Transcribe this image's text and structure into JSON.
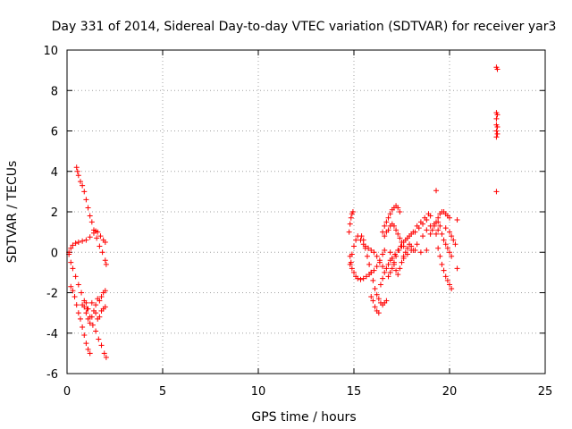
{
  "chart_data": {
    "type": "scatter",
    "title": "Day 331 of 2014, Sidereal Day-to-day VTEC variation (SDTVAR) for receiver yar3",
    "xlabel": "GPS time / hours",
    "ylabel": "SDTVAR / TECUs",
    "xlim": [
      0,
      25
    ],
    "ylim": [
      -6,
      10
    ],
    "xticks": [
      "0",
      "5",
      "10",
      "15",
      "20",
      "25"
    ],
    "yticks": [
      "-6",
      "-4",
      "-2",
      "0",
      "2",
      "4",
      "6",
      "8",
      "10"
    ],
    "grid": true,
    "marker": "+",
    "color": "#ff0000",
    "series": [
      {
        "points": [
          [
            0.5,
            4.2
          ],
          [
            0.55,
            4.0
          ],
          [
            0.6,
            3.8
          ],
          [
            0.7,
            3.5
          ],
          [
            0.8,
            3.3
          ],
          [
            0.9,
            3.0
          ],
          [
            1.0,
            2.6
          ],
          [
            1.1,
            2.2
          ],
          [
            1.2,
            1.8
          ],
          [
            1.3,
            1.5
          ],
          [
            1.4,
            1.1
          ],
          [
            1.55,
            0.7
          ],
          [
            1.7,
            0.3
          ],
          [
            1.85,
            0.0
          ],
          [
            2.0,
            -0.4
          ],
          [
            2.05,
            -0.6
          ],
          [
            0.1,
            0.0
          ],
          [
            0.2,
            0.2
          ],
          [
            0.3,
            0.35
          ],
          [
            0.45,
            0.45
          ],
          [
            0.6,
            0.5
          ],
          [
            0.8,
            0.55
          ],
          [
            1.0,
            0.6
          ],
          [
            1.2,
            0.75
          ],
          [
            1.4,
            0.95
          ],
          [
            1.5,
            1.05
          ],
          [
            1.6,
            1.0
          ],
          [
            1.75,
            0.8
          ],
          [
            1.9,
            0.6
          ],
          [
            2.0,
            0.5
          ],
          [
            0.1,
            -0.1
          ],
          [
            0.2,
            -0.5
          ],
          [
            0.3,
            -0.8
          ],
          [
            0.45,
            -1.2
          ],
          [
            0.6,
            -1.6
          ],
          [
            0.75,
            -2.0
          ],
          [
            0.9,
            -2.4
          ],
          [
            1.05,
            -2.8
          ],
          [
            1.2,
            -3.2
          ],
          [
            1.35,
            -3.6
          ],
          [
            1.5,
            -3.9
          ],
          [
            1.65,
            -4.3
          ],
          [
            1.8,
            -4.6
          ],
          [
            1.95,
            -5.0
          ],
          [
            2.05,
            -5.2
          ],
          [
            0.2,
            -1.7
          ],
          [
            0.3,
            -1.9
          ],
          [
            0.4,
            -2.2
          ],
          [
            0.5,
            -2.6
          ],
          [
            0.6,
            -3.0
          ],
          [
            0.7,
            -3.3
          ],
          [
            0.8,
            -3.7
          ],
          [
            0.9,
            -4.1
          ],
          [
            1.0,
            -4.5
          ],
          [
            1.1,
            -4.8
          ],
          [
            1.2,
            -5.0
          ],
          [
            0.8,
            -2.6
          ],
          [
            0.9,
            -2.7
          ],
          [
            1.0,
            -3.0
          ],
          [
            1.1,
            -3.3
          ],
          [
            1.2,
            -3.5
          ],
          [
            1.3,
            -3.2
          ],
          [
            1.4,
            -2.9
          ],
          [
            1.5,
            -3.0
          ],
          [
            1.6,
            -3.3
          ],
          [
            1.7,
            -3.2
          ],
          [
            1.8,
            -2.9
          ],
          [
            1.9,
            -2.8
          ],
          [
            2.0,
            -2.7
          ],
          [
            1.0,
            -2.5
          ],
          [
            1.1,
            -2.8
          ],
          [
            1.3,
            -2.5
          ],
          [
            1.5,
            -2.6
          ],
          [
            1.6,
            -2.3
          ],
          [
            1.7,
            -2.4
          ],
          [
            1.8,
            -2.2
          ],
          [
            1.9,
            -2.0
          ],
          [
            2.0,
            -1.9
          ]
        ]
      },
      {
        "points": [
          [
            14.75,
            1.0
          ],
          [
            14.8,
            1.4
          ],
          [
            14.85,
            1.7
          ],
          [
            14.9,
            1.9
          ],
          [
            14.95,
            2.0
          ],
          [
            14.8,
            -0.6
          ],
          [
            14.9,
            -0.1
          ],
          [
            15.0,
            0.3
          ],
          [
            15.1,
            0.6
          ],
          [
            15.2,
            0.8
          ],
          [
            15.35,
            0.6
          ],
          [
            15.5,
            0.4
          ],
          [
            15.6,
            0.3
          ],
          [
            15.75,
            0.2
          ],
          [
            15.9,
            0.1
          ],
          [
            16.05,
            0.0
          ],
          [
            16.2,
            -0.2
          ],
          [
            16.35,
            -0.5
          ],
          [
            16.5,
            -0.7
          ],
          [
            14.8,
            -0.2
          ],
          [
            14.85,
            -0.5
          ],
          [
            14.9,
            -0.8
          ],
          [
            15.0,
            -1.0
          ],
          [
            15.1,
            -1.2
          ],
          [
            15.2,
            -1.3
          ],
          [
            15.35,
            -1.35
          ],
          [
            15.5,
            -1.3
          ],
          [
            15.65,
            -1.2
          ],
          [
            15.8,
            -1.1
          ],
          [
            15.9,
            -1.0
          ],
          [
            16.05,
            -0.9
          ],
          [
            16.2,
            -0.7
          ],
          [
            16.35,
            -0.4
          ],
          [
            16.5,
            -0.1
          ],
          [
            16.6,
            0.1
          ],
          [
            15.4,
            0.8
          ],
          [
            15.5,
            0.6
          ],
          [
            15.6,
            0.2
          ],
          [
            15.7,
            -0.2
          ],
          [
            15.8,
            -0.6
          ],
          [
            15.9,
            -1.0
          ],
          [
            16.0,
            -1.4
          ],
          [
            16.1,
            -1.8
          ],
          [
            16.2,
            -2.1
          ],
          [
            16.3,
            -2.3
          ],
          [
            16.4,
            -2.5
          ],
          [
            16.5,
            -2.6
          ],
          [
            16.6,
            -2.5
          ],
          [
            16.7,
            -2.4
          ],
          [
            15.9,
            -2.2
          ],
          [
            16.0,
            -2.4
          ],
          [
            16.1,
            -2.7
          ],
          [
            16.2,
            -2.9
          ],
          [
            16.3,
            -3.0
          ],
          [
            16.5,
            1.0
          ],
          [
            16.6,
            1.3
          ],
          [
            16.7,
            1.5
          ],
          [
            16.8,
            1.7
          ],
          [
            16.9,
            1.9
          ],
          [
            17.0,
            2.1
          ],
          [
            17.1,
            2.2
          ],
          [
            17.2,
            2.3
          ],
          [
            17.3,
            2.2
          ],
          [
            17.4,
            2.0
          ],
          [
            16.6,
            0.8
          ],
          [
            16.7,
            1.0
          ],
          [
            16.8,
            1.1
          ],
          [
            16.9,
            1.3
          ],
          [
            17.0,
            1.4
          ],
          [
            17.1,
            1.3
          ],
          [
            17.2,
            1.1
          ],
          [
            17.3,
            0.9
          ],
          [
            17.4,
            0.7
          ],
          [
            17.5,
            0.5
          ],
          [
            17.6,
            0.3
          ],
          [
            16.4,
            -1.6
          ],
          [
            16.5,
            -1.3
          ],
          [
            16.6,
            -1.0
          ],
          [
            16.7,
            -0.8
          ],
          [
            16.8,
            -0.6
          ],
          [
            16.9,
            -0.4
          ],
          [
            17.0,
            -0.3
          ],
          [
            17.15,
            -0.1
          ],
          [
            17.3,
            0.1
          ],
          [
            17.45,
            0.3
          ],
          [
            17.6,
            0.5
          ],
          [
            17.8,
            0.7
          ],
          [
            18.0,
            0.9
          ],
          [
            18.2,
            1.0
          ],
          [
            18.4,
            1.2
          ],
          [
            18.6,
            1.4
          ],
          [
            18.8,
            1.6
          ],
          [
            19.0,
            1.8
          ],
          [
            16.8,
            -1.2
          ],
          [
            16.9,
            -1.0
          ],
          [
            17.0,
            -0.8
          ],
          [
            17.1,
            -0.5
          ],
          [
            17.2,
            -0.2
          ],
          [
            17.35,
            0.1
          ],
          [
            17.5,
            0.3
          ],
          [
            17.7,
            0.6
          ],
          [
            17.9,
            0.8
          ],
          [
            18.1,
            1.0
          ],
          [
            18.3,
            1.3
          ],
          [
            18.5,
            1.5
          ],
          [
            18.7,
            1.7
          ],
          [
            18.9,
            1.9
          ],
          [
            16.9,
            0.0
          ],
          [
            17.0,
            -0.3
          ],
          [
            17.1,
            -0.6
          ],
          [
            17.2,
            -0.9
          ],
          [
            17.3,
            -1.1
          ],
          [
            17.4,
            -0.8
          ],
          [
            17.5,
            -0.5
          ],
          [
            17.6,
            -0.2
          ],
          [
            17.7,
            0.0
          ],
          [
            17.8,
            0.2
          ],
          [
            17.9,
            0.4
          ],
          [
            18.0,
            0.3
          ],
          [
            18.1,
            0.1
          ],
          [
            17.6,
            -0.3
          ],
          [
            17.8,
            -0.1
          ],
          [
            18.0,
            0.1
          ],
          [
            18.3,
            0.4
          ],
          [
            18.6,
            0.8
          ],
          [
            18.8,
            1.1
          ],
          [
            19.0,
            1.3
          ],
          [
            19.2,
            1.4
          ],
          [
            19.4,
            1.5
          ],
          [
            19.0,
            0.9
          ],
          [
            19.1,
            1.1
          ],
          [
            19.2,
            1.3
          ],
          [
            19.3,
            1.5
          ],
          [
            19.4,
            1.7
          ],
          [
            19.5,
            1.9
          ],
          [
            19.6,
            2.0
          ],
          [
            19.7,
            2.0
          ],
          [
            19.8,
            1.9
          ],
          [
            19.9,
            1.8
          ],
          [
            20.0,
            1.7
          ],
          [
            19.4,
            0.2
          ],
          [
            19.5,
            -0.2
          ],
          [
            19.6,
            -0.6
          ],
          [
            19.7,
            -0.9
          ],
          [
            19.8,
            -1.2
          ],
          [
            19.9,
            -1.4
          ],
          [
            20.0,
            -1.6
          ],
          [
            20.1,
            -1.8
          ],
          [
            19.5,
            1.3
          ],
          [
            19.6,
            0.9
          ],
          [
            19.7,
            0.6
          ],
          [
            19.8,
            0.4
          ],
          [
            19.9,
            0.2
          ],
          [
            20.0,
            0.0
          ],
          [
            20.1,
            -0.2
          ],
          [
            18.2,
            0.1
          ],
          [
            18.5,
            0.0
          ],
          [
            18.8,
            0.1
          ],
          [
            19.3,
            3.05
          ],
          [
            19.8,
            1.2
          ],
          [
            20.0,
            1.0
          ],
          [
            20.1,
            0.8
          ],
          [
            20.2,
            0.6
          ],
          [
            20.3,
            0.4
          ],
          [
            20.4,
            1.6
          ],
          [
            20.4,
            -0.8
          ],
          [
            19.3,
            0.9
          ],
          [
            19.4,
            1.1
          ]
        ]
      },
      {
        "points": [
          [
            22.45,
            9.15
          ],
          [
            22.5,
            9.05
          ],
          [
            22.45,
            6.9
          ],
          [
            22.5,
            6.8
          ],
          [
            22.45,
            6.6
          ],
          [
            22.45,
            6.3
          ],
          [
            22.5,
            6.2
          ],
          [
            22.45,
            6.0
          ],
          [
            22.5,
            5.85
          ],
          [
            22.45,
            5.7
          ],
          [
            22.45,
            3.0
          ]
        ]
      }
    ]
  }
}
